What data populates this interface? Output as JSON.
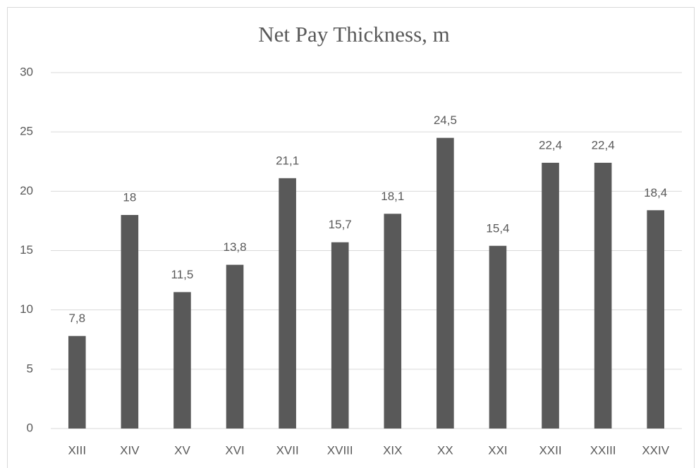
{
  "chart_data": {
    "type": "bar",
    "title": "Net Pay Thickness, m",
    "categories": [
      "XIII",
      "XIV",
      "XV",
      "XVI",
      "XVII",
      "XVIII",
      "XIX",
      "XX",
      "XXI",
      "XXII",
      "XXIII",
      "XXIV"
    ],
    "values": [
      7.8,
      18,
      11.5,
      13.8,
      21.1,
      15.7,
      18.1,
      24.5,
      15.4,
      22.4,
      22.4,
      18.4
    ],
    "value_labels": [
      "7,8",
      "18",
      "11,5",
      "13,8",
      "21,1",
      "15,7",
      "18,1",
      "24,5",
      "15,4",
      "22,4",
      "22,4",
      "18,4"
    ],
    "color": "#595959",
    "ylim": [
      0,
      30
    ],
    "yticks": [
      0,
      5,
      10,
      15,
      20,
      25,
      30
    ],
    "grid": true
  }
}
